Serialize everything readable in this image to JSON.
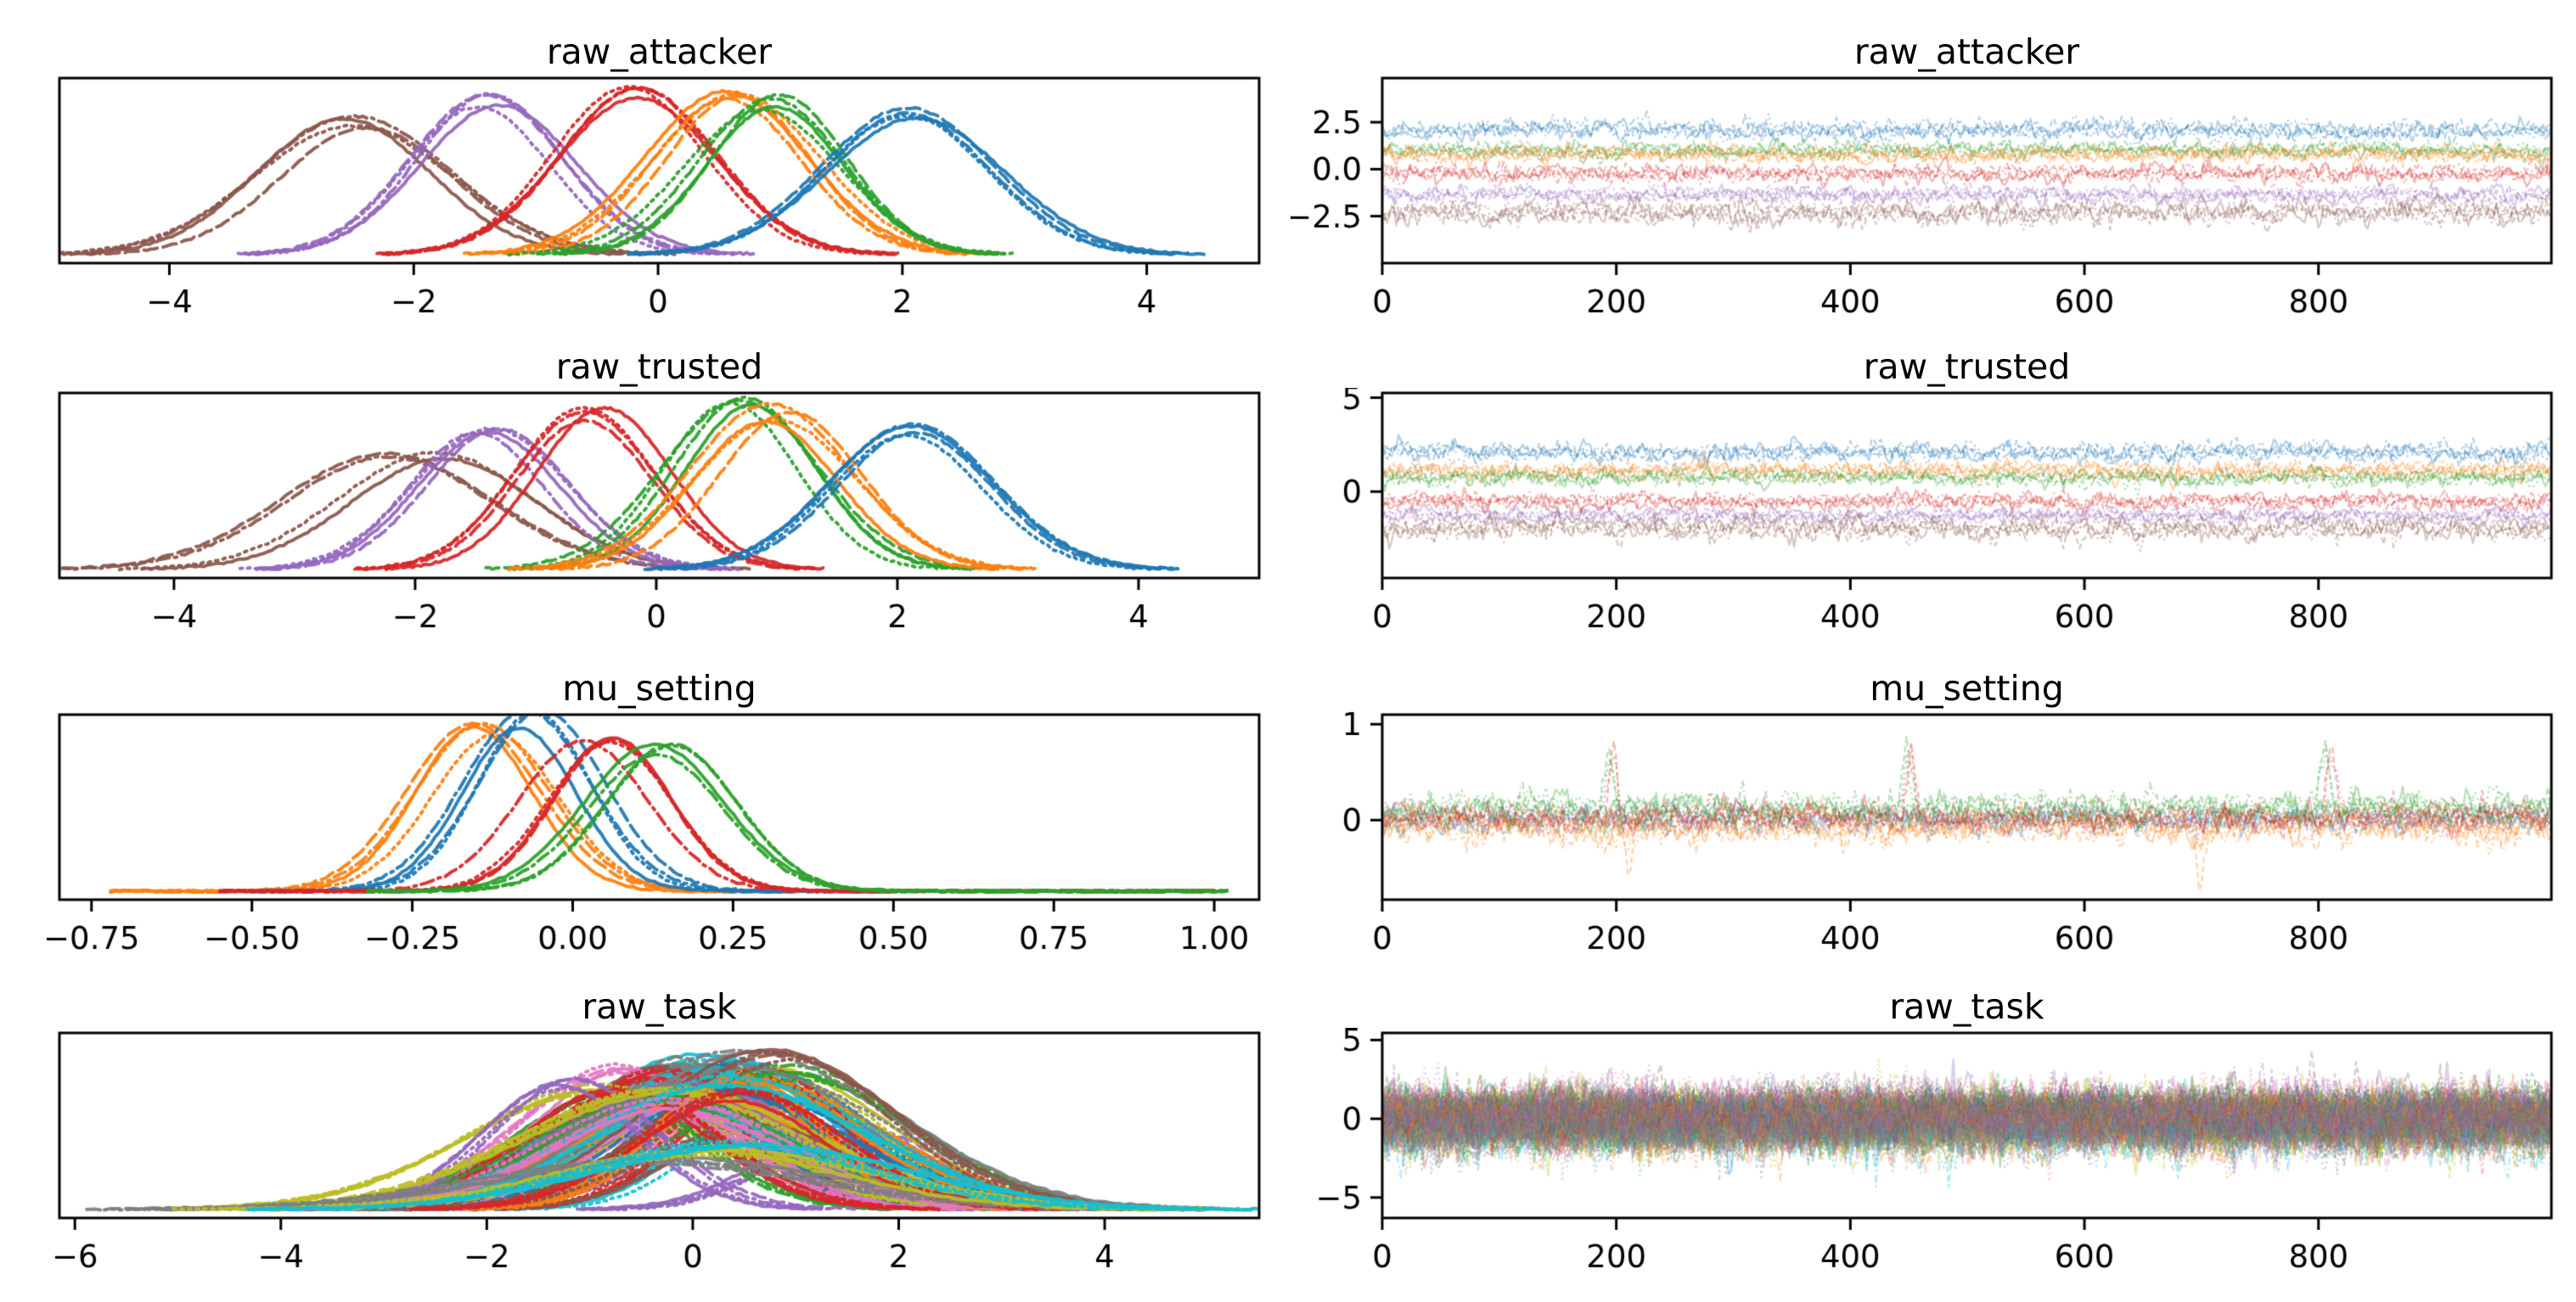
{
  "palette": {
    "blue": "#1f77b4",
    "orange": "#ff7f0e",
    "green": "#2ca02c",
    "red": "#d62728",
    "purple": "#9467bd",
    "brown": "#8c564b",
    "pink": "#e377c2",
    "gray": "#7f7f7f",
    "olive": "#bcbd22",
    "cyan": "#17becf",
    "axis": "#000000",
    "background": "#ffffff"
  },
  "chart_data": [
    {
      "panel": "kde",
      "type": "line",
      "title": "raw_attacker",
      "grid": {
        "row": 0,
        "col": 0
      },
      "legend": "none",
      "grid_lines": false,
      "xlim": [
        -4.9,
        4.92
      ],
      "xticks": [
        -4,
        -2,
        0,
        2,
        4
      ],
      "xtick_labels": [
        "−4",
        "−2",
        "0",
        "2",
        "4"
      ],
      "chains_per_series": 4,
      "linestyles": [
        "solid",
        "dashed",
        "dashdot",
        "dotted"
      ],
      "series": [
        {
          "color": "brown",
          "mean": -2.42,
          "sd": 0.75,
          "peak": 0.82,
          "mean_jitter": 0.16
        },
        {
          "color": "purple",
          "mean": -1.38,
          "sd": 0.62,
          "peak": 0.95,
          "mean_jitter": 0.1
        },
        {
          "color": "red",
          "mean": -0.18,
          "sd": 0.6,
          "peak": 1.0,
          "mean_jitter": 0.08
        },
        {
          "color": "orange",
          "mean": 0.62,
          "sd": 0.62,
          "peak": 0.95,
          "mean_jitter": 0.09
        },
        {
          "color": "green",
          "mean": 0.92,
          "sd": 0.58,
          "peak": 0.93,
          "mean_jitter": 0.08
        },
        {
          "color": "blue",
          "mean": 2.1,
          "sd": 0.68,
          "peak": 0.88,
          "mean_jitter": 0.1
        }
      ]
    },
    {
      "panel": "trace",
      "type": "line",
      "title": "raw_attacker",
      "grid": {
        "row": 0,
        "col": 1
      },
      "legend": "none",
      "grid_lines": false,
      "xlim": [
        0,
        999
      ],
      "xticks": [
        0,
        200,
        400,
        600,
        800
      ],
      "xtick_labels": [
        "0",
        "200",
        "400",
        "600",
        "800"
      ],
      "ylim": [
        -5.0,
        4.85
      ],
      "yticks": [
        2.5,
        0.0,
        -2.5
      ],
      "ytick_labels": [
        "2.5",
        "0.0",
        "−2.5"
      ],
      "chains_per_series": 4,
      "series": [
        {
          "color": "blue",
          "center": 2.1,
          "halfwidth": 0.62
        },
        {
          "color": "green",
          "center": 1.0,
          "halfwidth": 0.5
        },
        {
          "color": "orange",
          "center": 0.8,
          "halfwidth": 0.48
        },
        {
          "color": "red",
          "center": -0.25,
          "halfwidth": 0.52
        },
        {
          "color": "purple",
          "center": -1.35,
          "halfwidth": 0.5
        },
        {
          "color": "brown",
          "center": -2.3,
          "halfwidth": 0.68
        }
      ]
    },
    {
      "panel": "kde",
      "type": "line",
      "title": "raw_trusted",
      "grid": {
        "row": 1,
        "col": 0
      },
      "legend": "none",
      "grid_lines": false,
      "xlim": [
        -4.95,
        5.0
      ],
      "xticks": [
        -4,
        -2,
        0,
        2,
        4
      ],
      "xtick_labels": [
        "−4",
        "−2",
        "0",
        "2",
        "4"
      ],
      "chains_per_series": 4,
      "linestyles": [
        "solid",
        "dashed",
        "dashdot",
        "dotted"
      ],
      "series": [
        {
          "color": "brown",
          "mean": -2.05,
          "sd": 0.8,
          "peak": 0.72,
          "mean_jitter": 0.3
        },
        {
          "color": "purple",
          "mean": -1.4,
          "sd": 0.62,
          "peak": 0.85,
          "mean_jitter": 0.12
        },
        {
          "color": "red",
          "mean": -0.5,
          "sd": 0.6,
          "peak": 0.95,
          "mean_jitter": 0.1
        },
        {
          "color": "green",
          "mean": 0.7,
          "sd": 0.6,
          "peak": 1.0,
          "mean_jitter": 0.1
        },
        {
          "color": "orange",
          "mean": 1.0,
          "sd": 0.65,
          "peak": 0.97,
          "mean_jitter": 0.12
        },
        {
          "color": "blue",
          "mean": 2.05,
          "sd": 0.65,
          "peak": 0.85,
          "mean_jitter": 0.1
        }
      ]
    },
    {
      "panel": "trace",
      "type": "line",
      "title": "raw_trusted",
      "grid": {
        "row": 1,
        "col": 1
      },
      "legend": "none",
      "grid_lines": false,
      "xlim": [
        0,
        999
      ],
      "xticks": [
        0,
        200,
        400,
        600,
        800
      ],
      "xtick_labels": [
        "0",
        "200",
        "400",
        "600",
        "800"
      ],
      "ylim": [
        -4.6,
        5.25
      ],
      "yticks": [
        5,
        0
      ],
      "ytick_labels": [
        "5",
        "0"
      ],
      "chains_per_series": 4,
      "series": [
        {
          "color": "blue",
          "center": 2.1,
          "halfwidth": 0.6
        },
        {
          "color": "orange",
          "center": 1.1,
          "halfwidth": 0.55
        },
        {
          "color": "green",
          "center": 0.75,
          "halfwidth": 0.5
        },
        {
          "color": "red",
          "center": -0.5,
          "halfwidth": 0.5
        },
        {
          "color": "purple",
          "center": -1.25,
          "halfwidth": 0.45
        },
        {
          "color": "brown",
          "center": -1.95,
          "halfwidth": 0.78
        }
      ]
    },
    {
      "panel": "kde",
      "type": "line",
      "title": "mu_setting",
      "grid": {
        "row": 2,
        "col": 0
      },
      "legend": "none",
      "grid_lines": false,
      "xlim": [
        -0.8,
        1.07
      ],
      "xticks": [
        -0.75,
        -0.5,
        -0.25,
        0,
        0.25,
        0.5,
        0.75,
        1.0
      ],
      "xtick_labels": [
        "−0.75",
        "−0.50",
        "−0.25",
        "0.00",
        "0.25",
        "0.50",
        "0.75",
        "1.00"
      ],
      "chains_per_series": 4,
      "linestyles": [
        "solid",
        "dashed",
        "dashdot",
        "dotted"
      ],
      "series": [
        {
          "color": "orange",
          "mean": -0.13,
          "sd": 0.1,
          "peak": 0.98,
          "mean_jitter": 0.035,
          "domain": [
            -0.72,
            0.35
          ]
        },
        {
          "color": "blue",
          "mean": -0.055,
          "sd": 0.095,
          "peak": 1.06,
          "mean_jitter": 0.03,
          "domain": [
            -0.5,
            0.45
          ]
        },
        {
          "color": "red",
          "mean": 0.035,
          "sd": 0.1,
          "peak": 0.9,
          "mean_jitter": 0.035,
          "domain": [
            -0.55,
            1.0
          ]
        },
        {
          "color": "green",
          "mean": 0.125,
          "sd": 0.105,
          "peak": 0.88,
          "mean_jitter": 0.035,
          "domain": [
            -0.32,
            1.02
          ]
        }
      ]
    },
    {
      "panel": "trace",
      "type": "line",
      "title": "mu_setting",
      "grid": {
        "row": 2,
        "col": 1
      },
      "legend": "none",
      "grid_lines": false,
      "xlim": [
        0,
        999
      ],
      "xticks": [
        0,
        200,
        400,
        600,
        800
      ],
      "xtick_labels": [
        "0",
        "200",
        "400",
        "600",
        "800"
      ],
      "ylim": [
        -0.83,
        1.1
      ],
      "yticks": [
        1,
        0
      ],
      "ytick_labels": [
        "1",
        "0"
      ],
      "chains_per_series": 4,
      "series": [
        {
          "color": "blue",
          "center": 0.0,
          "halfwidth": 0.16
        },
        {
          "color": "orange",
          "center": -0.06,
          "halfwidth": 0.19,
          "spikes": [
            {
              "x": 210,
              "amp": -0.45
            },
            {
              "x": 700,
              "amp": -0.52
            }
          ]
        },
        {
          "color": "green",
          "center": 0.12,
          "halfwidth": 0.18,
          "spikes": [
            {
              "x": 193,
              "amp": 0.75
            },
            {
              "x": 448,
              "amp": 0.7
            },
            {
              "x": 806,
              "amp": 0.82
            }
          ]
        },
        {
          "color": "red",
          "center": 0.03,
          "halfwidth": 0.16,
          "spikes": [
            {
              "x": 197,
              "amp": 0.85
            },
            {
              "x": 452,
              "amp": 0.85
            },
            {
              "x": 811,
              "amp": 0.92
            }
          ]
        }
      ]
    },
    {
      "panel": "kde",
      "type": "line",
      "title": "raw_task",
      "grid": {
        "row": 3,
        "col": 0
      },
      "legend": "none",
      "grid_lines": false,
      "xlim": [
        -6.15,
        5.5
      ],
      "xticks": [
        -6,
        -4,
        -2,
        0,
        2,
        4
      ],
      "xtick_labels": [
        "−6",
        "−4",
        "−2",
        "0",
        "2",
        "4"
      ],
      "chains_per_series": 4,
      "linestyles": [
        "solid",
        "dashed",
        "dashdot",
        "dotted"
      ],
      "series_generator": {
        "count": 44,
        "colors": [
          "olive",
          "cyan",
          "pink",
          "red",
          "green",
          "blue",
          "orange",
          "gray",
          "brown",
          "purple"
        ],
        "mean_sd": 0.55,
        "sd_min": 0.75,
        "sd_max": 1.35,
        "peak_min": 0.5,
        "peak_max": 0.95
      },
      "extra_series": [
        {
          "color": "gray",
          "mean": -0.3,
          "sd": 1.55,
          "peak": 0.3,
          "mean_jitter": 0.2
        },
        {
          "color": "olive",
          "mean": 0.2,
          "sd": 1.5,
          "peak": 0.35,
          "mean_jitter": 0.2
        },
        {
          "color": "cyan",
          "mean": 0.5,
          "sd": 1.45,
          "peak": 0.4,
          "mean_jitter": 0.2
        }
      ]
    },
    {
      "panel": "trace",
      "type": "line",
      "title": "raw_task",
      "grid": {
        "row": 3,
        "col": 1
      },
      "legend": "none",
      "grid_lines": false,
      "xlim": [
        0,
        999
      ],
      "xticks": [
        0,
        200,
        400,
        600,
        800
      ],
      "xtick_labels": [
        "0",
        "200",
        "400",
        "600",
        "800"
      ],
      "ylim": [
        -6.3,
        5.45
      ],
      "yticks": [
        5,
        0,
        -5
      ],
      "ytick_labels": [
        "5",
        "0",
        "−5"
      ],
      "chains_per_series": 4,
      "series_generator": {
        "count": 40,
        "colors": [
          "olive",
          "cyan",
          "pink",
          "red",
          "green",
          "blue",
          "orange",
          "gray",
          "brown",
          "purple"
        ],
        "center_sd": 0.45,
        "hw_min": 1.25,
        "hw_max": 2.1
      },
      "extra_series": [
        {
          "color": "gray",
          "center": 0.0,
          "halfwidth": 2.0,
          "spikes": [
            {
              "x": 795,
              "amp": 3.5
            },
            {
              "x": 808,
              "amp": -4.2
            },
            {
              "x": 813,
              "amp": 4.0
            }
          ]
        }
      ]
    }
  ]
}
